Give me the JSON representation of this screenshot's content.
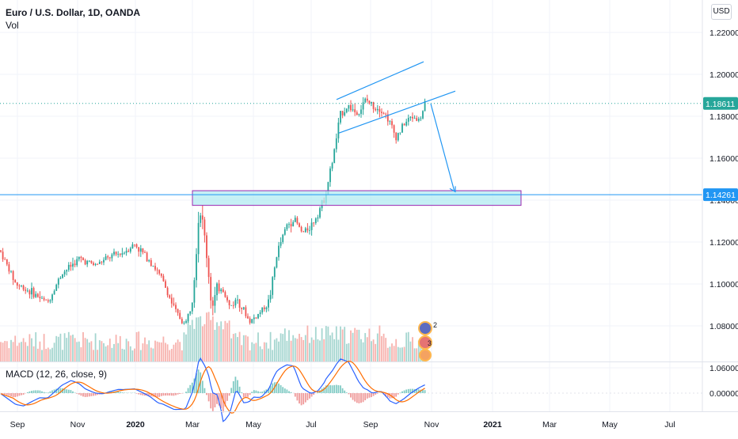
{
  "header": {
    "title": "Euro / U.S. Dollar, 1D, OANDA",
    "volume_label": "Vol",
    "macd_label": "MACD (12, 26, close, 9)",
    "currency_button": "USD"
  },
  "chart_data": {
    "type": "candlestick",
    "symbol": "EURUSD",
    "interval": "1D",
    "source": "OANDA",
    "x_axis_labels": [
      "Sep",
      "Nov",
      "2020",
      "Mar",
      "May",
      "Jul",
      "Sep",
      "Nov",
      "2021",
      "Mar",
      "May",
      "Jul"
    ],
    "y_axis_labels": [
      "1.22000",
      "1.20000",
      "1.18000",
      "1.16000",
      "1.14000",
      "1.12000",
      "1.10000",
      "1.08000",
      "1.06000"
    ],
    "ylim": [
      1.05,
      1.23
    ],
    "macd_axis_label": "0.00000",
    "last_price": "1.18611",
    "level_price": "1.14261",
    "price_path": [
      [
        0,
        1.116
      ],
      [
        20,
        1.1
      ],
      [
        40,
        1.096
      ],
      [
        60,
        1.091
      ],
      [
        78,
        1.105
      ],
      [
        100,
        1.112
      ],
      [
        120,
        1.109
      ],
      [
        140,
        1.113
      ],
      [
        155,
        1.115
      ],
      [
        170,
        1.119
      ],
      [
        190,
        1.111
      ],
      [
        205,
        1.102
      ],
      [
        220,
        1.088
      ],
      [
        234,
        1.08
      ],
      [
        244,
        1.098
      ],
      [
        252,
        1.138
      ],
      [
        260,
        1.118
      ],
      [
        268,
        1.088
      ],
      [
        278,
        1.101
      ],
      [
        290,
        1.089
      ],
      [
        300,
        1.093
      ],
      [
        315,
        1.082
      ],
      [
        325,
        1.085
      ],
      [
        340,
        1.092
      ],
      [
        350,
        1.115
      ],
      [
        362,
        1.128
      ],
      [
        372,
        1.131
      ],
      [
        382,
        1.124
      ],
      [
        395,
        1.129
      ],
      [
        410,
        1.141
      ],
      [
        420,
        1.159
      ],
      [
        430,
        1.181
      ],
      [
        440,
        1.185
      ],
      [
        452,
        1.181
      ],
      [
        462,
        1.188
      ],
      [
        470,
        1.185
      ],
      [
        480,
        1.184
      ],
      [
        490,
        1.179
      ],
      [
        500,
        1.17
      ],
      [
        510,
        1.176
      ],
      [
        520,
        1.18
      ],
      [
        530,
        1.178
      ],
      [
        537,
        1.186
      ]
    ],
    "channel_upper": [
      [
        1.188,
        425
      ],
      [
        1.206,
        535
      ]
    ],
    "channel_lower": [
      [
        1.172,
        428
      ],
      [
        1.192,
        575
      ]
    ],
    "forecast_target": 1.144,
    "zone": [
      1.1375,
      1.1445
    ],
    "volume_markers": [
      "2",
      "3"
    ],
    "colors": {
      "up": "#26a69a",
      "down": "#ef5350",
      "drawing": "#2196f3",
      "zone_fill": "#b2ebf2",
      "zone_border": "#9c27b0",
      "macd_line": "#2962ff",
      "signal_line": "#ff6d00",
      "price_label_bg": "#26a69a",
      "level_label_bg": "#2196f3"
    }
  }
}
